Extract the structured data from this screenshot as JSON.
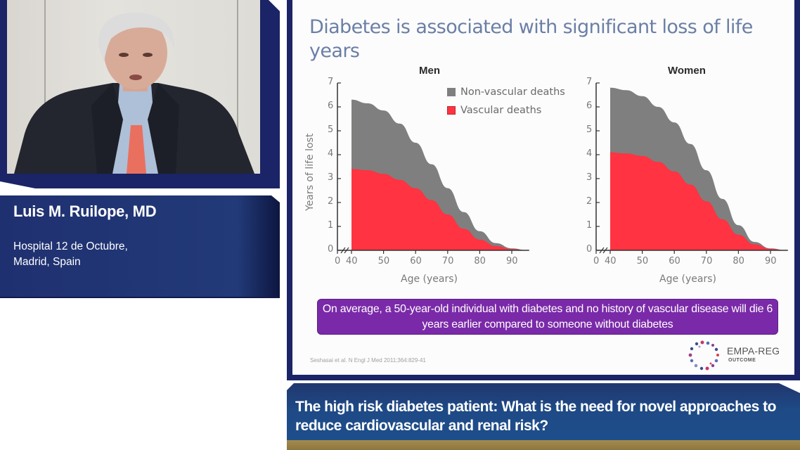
{
  "speaker": {
    "name": "Luis M. Ruilope, MD",
    "affiliation_line1": "Hospital 12 de Octubre,",
    "affiliation_line2": "Madrid, Spain"
  },
  "slide": {
    "title": "Diabetes is associated with significant loss of life years",
    "callout": "On average, a 50-year-old individual with diabetes and no history of vascular disease will die 6 years earlier compared to someone without diabetes",
    "citation": "Seshasai et al. N Engl J Med 2011;364:829-41",
    "logo": {
      "name": "EMPA-REG",
      "sub": "OUTCOME",
      "icon": "dotted-ring-logo-icon"
    }
  },
  "banner": {
    "text": "The high risk diabetes patient: What is the need for novel approaches to reduce cardiovascular and renal risk?"
  },
  "colors": {
    "non_vascular": "#7f7f7f",
    "vascular": "#ff3341",
    "frame_navy": "#1b2466",
    "callout_purple": "#7a2aa8",
    "title_blue": "#6b7fa5"
  },
  "legend": [
    {
      "label": "Non-vascular deaths",
      "color": "#7f7f7f"
    },
    {
      "label": "Vascular deaths",
      "color": "#ff3341"
    }
  ],
  "chart_data": [
    {
      "type": "area",
      "title": "Men",
      "xlabel": "Age (years)",
      "ylabel": "Years of life lost",
      "x_ticks": [
        "0",
        "40",
        "50",
        "60",
        "70",
        "80",
        "90"
      ],
      "y_ticks": [
        "0",
        "1",
        "2",
        "3",
        "4",
        "5",
        "6",
        "7"
      ],
      "ylim": [
        0,
        7
      ],
      "xlim": [
        40,
        95
      ],
      "axis_break": true,
      "grid": false,
      "legend_position": "top-right",
      "x": [
        40,
        45,
        50,
        55,
        60,
        65,
        70,
        75,
        80,
        85,
        90,
        95
      ],
      "series": [
        {
          "name": "Vascular deaths",
          "values": [
            3.4,
            3.35,
            3.2,
            2.95,
            2.6,
            2.1,
            1.5,
            0.9,
            0.45,
            0.18,
            0.05,
            0.0
          ]
        },
        {
          "name": "Non-vascular deaths (total)",
          "values": [
            6.3,
            6.15,
            5.85,
            5.3,
            4.5,
            3.6,
            2.6,
            1.6,
            0.8,
            0.3,
            0.08,
            0.0
          ]
        }
      ]
    },
    {
      "type": "area",
      "title": "Women",
      "xlabel": "Age (years)",
      "ylabel": "Years of life lost",
      "x_ticks": [
        "0",
        "40",
        "50",
        "60",
        "70",
        "80",
        "90"
      ],
      "y_ticks": [
        "0",
        "1",
        "2",
        "3",
        "4",
        "5",
        "6",
        "7"
      ],
      "ylim": [
        0,
        7
      ],
      "xlim": [
        40,
        95
      ],
      "axis_break": true,
      "grid": false,
      "x": [
        40,
        45,
        50,
        55,
        60,
        65,
        70,
        75,
        80,
        85,
        90,
        95
      ],
      "series": [
        {
          "name": "Vascular deaths",
          "values": [
            4.1,
            4.05,
            3.95,
            3.7,
            3.3,
            2.75,
            2.05,
            1.3,
            0.65,
            0.25,
            0.06,
            0.0
          ]
        },
        {
          "name": "Non-vascular deaths (total)",
          "values": [
            6.8,
            6.7,
            6.45,
            6.0,
            5.35,
            4.45,
            3.35,
            2.15,
            1.05,
            0.35,
            0.08,
            0.0
          ]
        }
      ]
    }
  ]
}
